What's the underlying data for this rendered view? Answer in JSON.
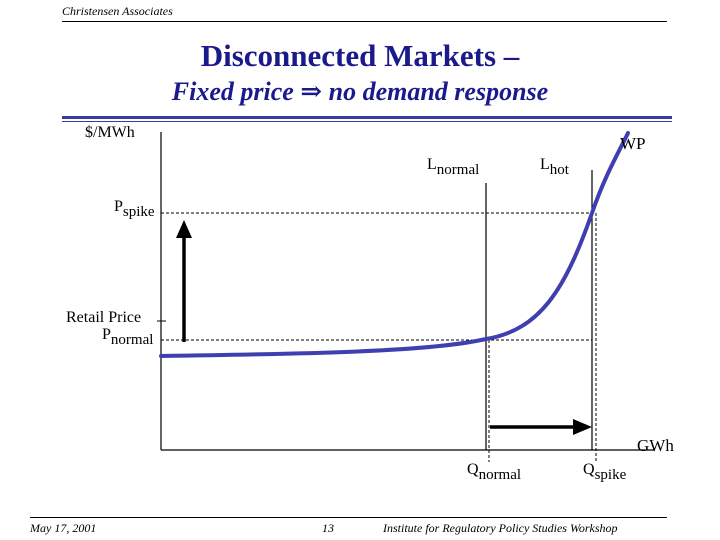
{
  "header": {
    "organization": "Christensen Associates"
  },
  "slide": {
    "title": "Disconnected Markets –",
    "subtitle_before": "Fixed price",
    "subtitle_arrow_glyph": "⇒",
    "subtitle_after": "no demand response"
  },
  "diagram": {
    "y_axis_label": "$/MWh",
    "x_axis_label": "GWh",
    "curve_label": "WP",
    "line_normal": {
      "main": "L",
      "sub": "normal"
    },
    "line_hot": {
      "main": "L",
      "sub": "hot"
    },
    "p_spike": {
      "main": "P",
      "sub": "spike"
    },
    "retail_price": "Retail Price",
    "p_normal": {
      "main": "P",
      "sub": "normal"
    },
    "q_normal": {
      "main": "Q",
      "sub": "normal"
    },
    "q_spike": {
      "main": "Q",
      "sub": "spike"
    },
    "colors": {
      "curve": "#3f3fb0",
      "title": "#1a1a8c"
    }
  },
  "footer": {
    "date": "May 17, 2001",
    "page_number": "13",
    "event": "Institute for Regulatory Policy Studies Workshop"
  }
}
